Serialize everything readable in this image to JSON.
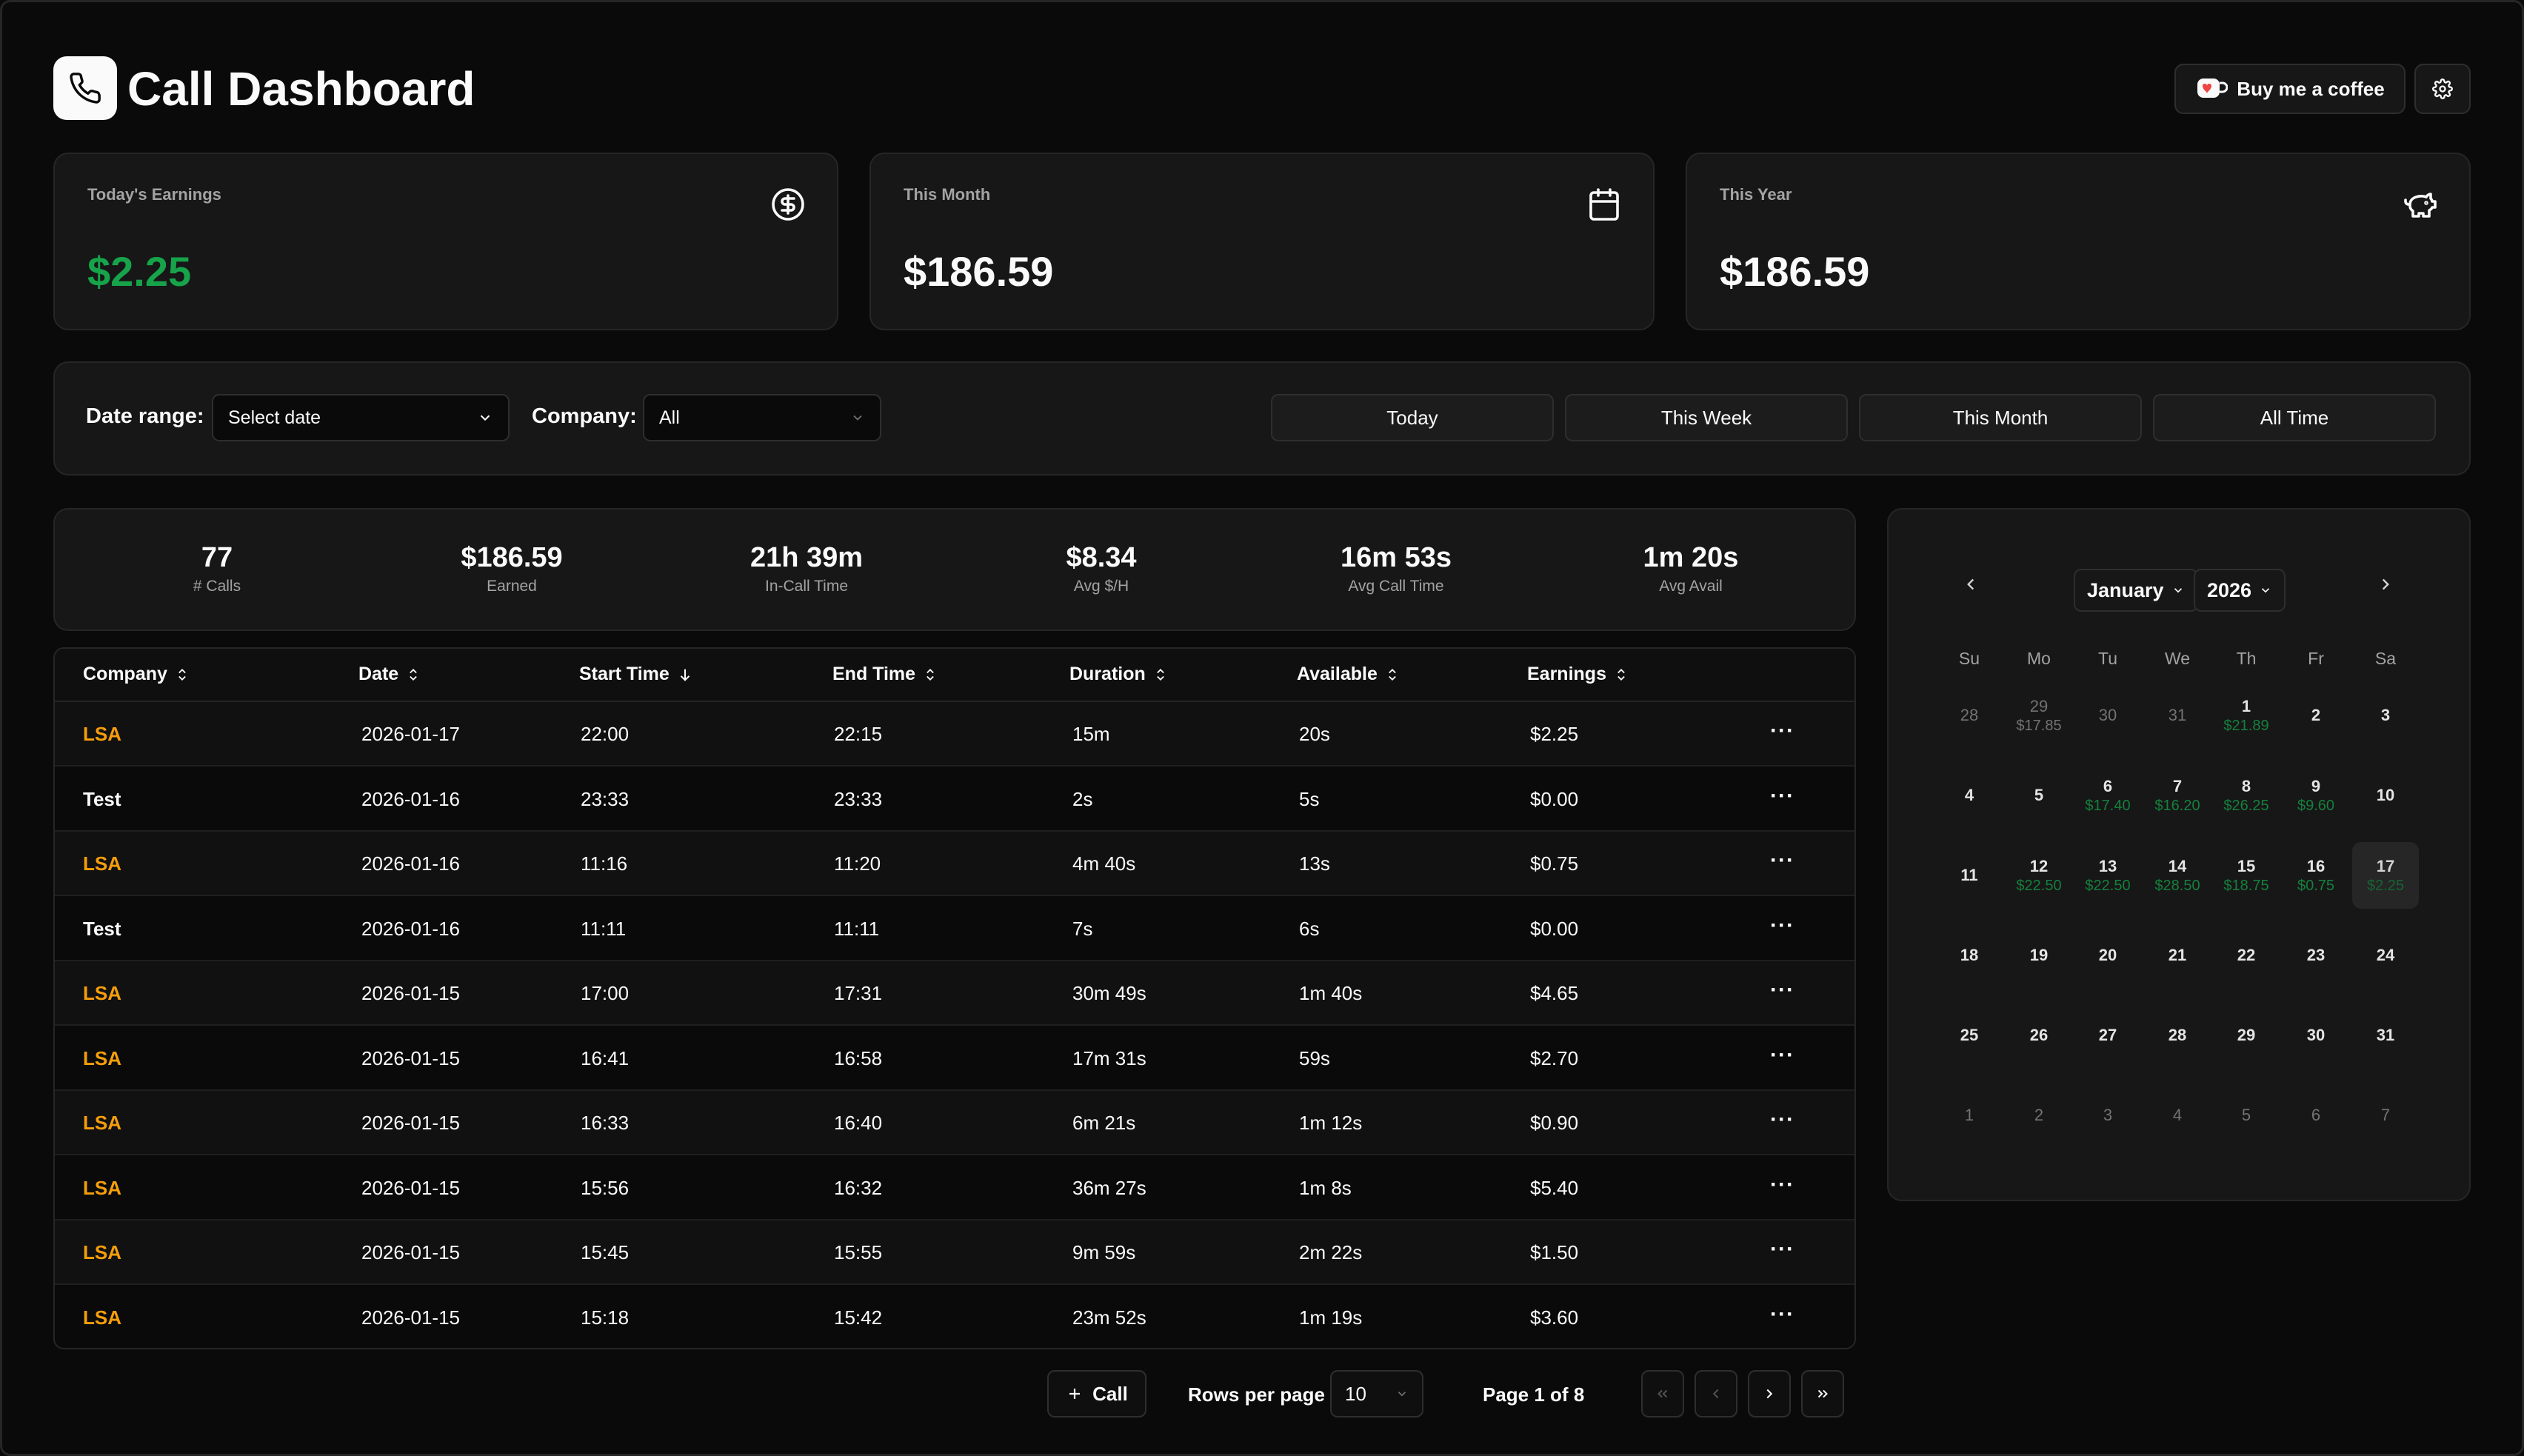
{
  "header": {
    "title": "Call Dashboard",
    "coffee_label": "Buy me a coffee"
  },
  "stats": [
    {
      "label": "Today's Earnings",
      "value": "$2.25",
      "icon": "dollar-circle-icon",
      "color": "#16a34a"
    },
    {
      "label": "This Month",
      "value": "$186.59",
      "icon": "calendar-icon",
      "color": "#fafafa"
    },
    {
      "label": "This Year",
      "value": "$186.59",
      "icon": "piggy-bank-icon",
      "color": "#fafafa"
    }
  ],
  "filters": {
    "date_label": "Date range:",
    "date_value": "Select date",
    "company_label": "Company:",
    "company_value": "All",
    "ranges": [
      "Today",
      "This Week",
      "This Month",
      "All Time"
    ]
  },
  "summary": [
    {
      "value": "77",
      "label": "# Calls"
    },
    {
      "value": "$186.59",
      "label": "Earned"
    },
    {
      "value": "21h 39m",
      "label": "In-Call Time"
    },
    {
      "value": "$8.34",
      "label": "Avg $/H"
    },
    {
      "value": "16m 53s",
      "label": "Avg Call Time"
    },
    {
      "value": "1m 20s",
      "label": "Avg Avail"
    }
  ],
  "table": {
    "headers": [
      "Company",
      "Date",
      "Start Time",
      "End Time",
      "Duration",
      "Available",
      "Earnings"
    ],
    "rows": [
      [
        "LSA",
        "2026-01-17",
        "22:00",
        "22:15",
        "15m",
        "20s",
        "$2.25"
      ],
      [
        "Test",
        "2026-01-16",
        "23:33",
        "23:33",
        "2s",
        "5s",
        "$0.00"
      ],
      [
        "LSA",
        "2026-01-16",
        "11:16",
        "11:20",
        "4m 40s",
        "13s",
        "$0.75"
      ],
      [
        "Test",
        "2026-01-16",
        "11:11",
        "11:11",
        "7s",
        "6s",
        "$0.00"
      ],
      [
        "LSA",
        "2026-01-15",
        "17:00",
        "17:31",
        "30m 49s",
        "1m 40s",
        "$4.65"
      ],
      [
        "LSA",
        "2026-01-15",
        "16:41",
        "16:58",
        "17m 31s",
        "59s",
        "$2.70"
      ],
      [
        "LSA",
        "2026-01-15",
        "16:33",
        "16:40",
        "6m 21s",
        "1m 12s",
        "$0.90"
      ],
      [
        "LSA",
        "2026-01-15",
        "15:56",
        "16:32",
        "36m 27s",
        "1m 8s",
        "$5.40"
      ],
      [
        "LSA",
        "2026-01-15",
        "15:45",
        "15:55",
        "9m 59s",
        "2m 22s",
        "$1.50"
      ],
      [
        "LSA",
        "2026-01-15",
        "15:18",
        "15:42",
        "23m 52s",
        "1m 19s",
        "$3.60"
      ]
    ]
  },
  "pagination": {
    "add_call": "Call",
    "rows_per_page_label": "Rows per page",
    "rows_per_page": "10",
    "page_text": "Page 1 of 8"
  },
  "calendar": {
    "month": "January",
    "year": "2026",
    "weekdays": [
      "Su",
      "Mo",
      "Tu",
      "We",
      "Th",
      "Fr",
      "Sa"
    ],
    "weeks": [
      [
        {
          "d": "28",
          "m": true
        },
        {
          "d": "29",
          "e": "$17.85",
          "m": true
        },
        {
          "d": "30",
          "m": true
        },
        {
          "d": "31",
          "m": true
        },
        {
          "d": "1",
          "e": "$21.89"
        },
        {
          "d": "2"
        },
        {
          "d": "3"
        }
      ],
      [
        {
          "d": "4"
        },
        {
          "d": "5"
        },
        {
          "d": "6",
          "e": "$17.40"
        },
        {
          "d": "7",
          "e": "$16.20"
        },
        {
          "d": "8",
          "e": "$26.25"
        },
        {
          "d": "9",
          "e": "$9.60"
        },
        {
          "d": "10"
        }
      ],
      [
        {
          "d": "11"
        },
        {
          "d": "12",
          "e": "$22.50"
        },
        {
          "d": "13",
          "e": "$22.50"
        },
        {
          "d": "14",
          "e": "$28.50"
        },
        {
          "d": "15",
          "e": "$18.75"
        },
        {
          "d": "16",
          "e": "$0.75"
        },
        {
          "d": "17",
          "e": "$2.25",
          "sel": true
        }
      ],
      [
        {
          "d": "18"
        },
        {
          "d": "19"
        },
        {
          "d": "20"
        },
        {
          "d": "21"
        },
        {
          "d": "22"
        },
        {
          "d": "23"
        },
        {
          "d": "24"
        }
      ],
      [
        {
          "d": "25"
        },
        {
          "d": "26"
        },
        {
          "d": "27"
        },
        {
          "d": "28"
        },
        {
          "d": "29"
        },
        {
          "d": "30"
        },
        {
          "d": "31"
        }
      ],
      [
        {
          "d": "1",
          "m": true
        },
        {
          "d": "2",
          "m": true
        },
        {
          "d": "3",
          "m": true
        },
        {
          "d": "4",
          "m": true
        },
        {
          "d": "5",
          "m": true
        },
        {
          "d": "6",
          "m": true
        },
        {
          "d": "7",
          "m": true
        }
      ]
    ]
  }
}
